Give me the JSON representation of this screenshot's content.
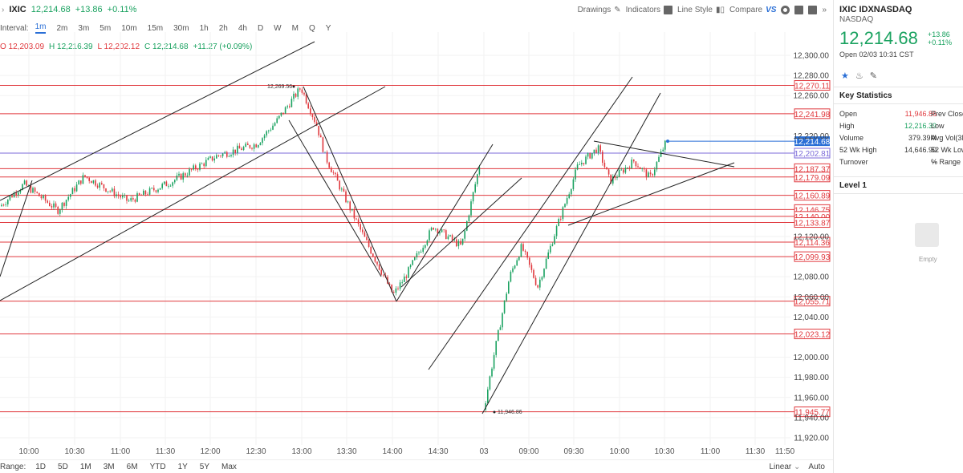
{
  "toolbar": {
    "symbol": "IXIC",
    "price": "12,214.68",
    "change": "+13.86",
    "pct": "+0.11%",
    "drawings": "Drawings",
    "indicators": "Indicators",
    "line_style": "Line Style",
    "compare": "Compare",
    "compare_vs": "VS",
    "more": "»"
  },
  "interval": {
    "label": "Interval:",
    "options": [
      "1m",
      "2m",
      "3m",
      "5m",
      "10m",
      "15m",
      "30m",
      "1h",
      "2h",
      "4h",
      "D",
      "W",
      "M",
      "Q",
      "Y"
    ],
    "active": "1m"
  },
  "ohlc": {
    "o": "O 12,203.09",
    "h": "H 12,216.39",
    "l": "L 12,202.12",
    "c": "C 12,214.68",
    "chg": "+11.27 (+0.09%)"
  },
  "chart_data": {
    "type": "candlestick",
    "y_axis_ticks": [
      "12,300.00",
      "12,280.00",
      "12,260.00",
      "12,220.00",
      "12,120.00",
      "12,080.00",
      "12,060.00",
      "12,040.00",
      "12,000.00",
      "11,980.00",
      "11,960.00",
      "11,940.00",
      "11,920.00"
    ],
    "x_axis_ticks": [
      "10:00",
      "10:30",
      "11:00",
      "11:30",
      "12:00",
      "12:30",
      "13:00",
      "13:30",
      "14:00",
      "14:30",
      "03",
      "09:00",
      "09:30",
      "10:00",
      "10:30",
      "11:00",
      "11:30",
      "11:50"
    ],
    "horizontal_levels": [
      "12,270.11",
      "12,241.98",
      "12,187.37",
      "12,179.09",
      "12,160.89",
      "12,146.75",
      "12,140.00",
      "12,133.87",
      "12,114.36",
      "12,099.93",
      "12,055.71",
      "12,023.12",
      "11,945.77"
    ],
    "purple_level": "12,202.81",
    "current_price_label": "12,214.68",
    "annotations": [
      "12,269.56",
      "11,946.86"
    ],
    "ylim": [
      11910,
      12315
    ]
  },
  "rangebar": {
    "label": "Range:",
    "options": [
      "1D",
      "5D",
      "1M",
      "3M",
      "6M",
      "YTD",
      "1Y",
      "5Y",
      "Max"
    ],
    "scale": "Linear",
    "auto": "Auto"
  },
  "panel": {
    "title": "IXIC IDXNASDAQ",
    "exchange": "NASDAQ",
    "price": "12,214.68",
    "change": "+13.86",
    "pct": "+0.11%",
    "open_time": "Open 02/03 10:31 CST",
    "key_stats_title": "Key Statistics",
    "stats": [
      {
        "k1": "Open",
        "v1": "11,946.86",
        "k2": "Prev Close",
        "red": true
      },
      {
        "k1": "High",
        "v1": "12,216.39",
        "k2": "Low",
        "green": true
      },
      {
        "k1": "Volume",
        "v1": "379.39M",
        "k2": "Avg Vol(3M"
      },
      {
        "k1": "52 Wk High",
        "v1": "14,646.90",
        "k2": "52 Wk Low"
      },
      {
        "k1": "Turnover",
        "v1": "--",
        "k2": "% Range"
      }
    ],
    "level1": "Level 1",
    "empty": "Empty"
  },
  "colors": {
    "up": "#1aa260",
    "down": "#e0393e",
    "level_line": "#e0393e",
    "purple": "#7b6ad8",
    "accent": "#2a6fd6"
  }
}
